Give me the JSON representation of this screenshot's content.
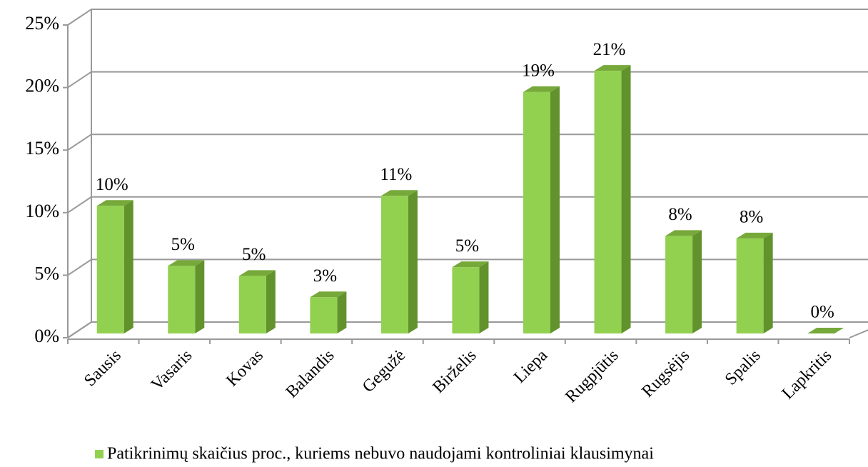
{
  "chart_data": {
    "type": "bar3d",
    "categories": [
      "Sausis",
      "Vasaris",
      "Kovas",
      "Balandis",
      "Gegužė",
      "Birželis",
      "Liepa",
      "Rugpjūtis",
      "Rugsėjis",
      "Spalis",
      "Lapkritis"
    ],
    "series": [
      {
        "name": "Patikrinimų skaičius proc., kuriems nebuvo naudojami kontroliniai klausimynai",
        "color": "#92d050",
        "values": [
          10.2,
          5.4,
          4.6,
          2.9,
          11.0,
          5.3,
          19.3,
          21.0,
          7.8,
          7.6,
          0
        ],
        "value_labels": [
          "10%",
          "5%",
          "5%",
          "3%",
          "11%",
          "5%",
          "19%",
          "21%",
          "8%",
          "8%",
          "0%"
        ]
      }
    ],
    "ylim": [
      0,
      25
    ],
    "yticks": [
      {
        "value": 0,
        "label": "0%"
      },
      {
        "value": 5,
        "label": "5%"
      },
      {
        "value": 10,
        "label": "10%"
      },
      {
        "value": 15,
        "label": "15%"
      },
      {
        "value": 20,
        "label": "20%"
      },
      {
        "value": 25,
        "label": "25%"
      }
    ],
    "grid": true
  }
}
